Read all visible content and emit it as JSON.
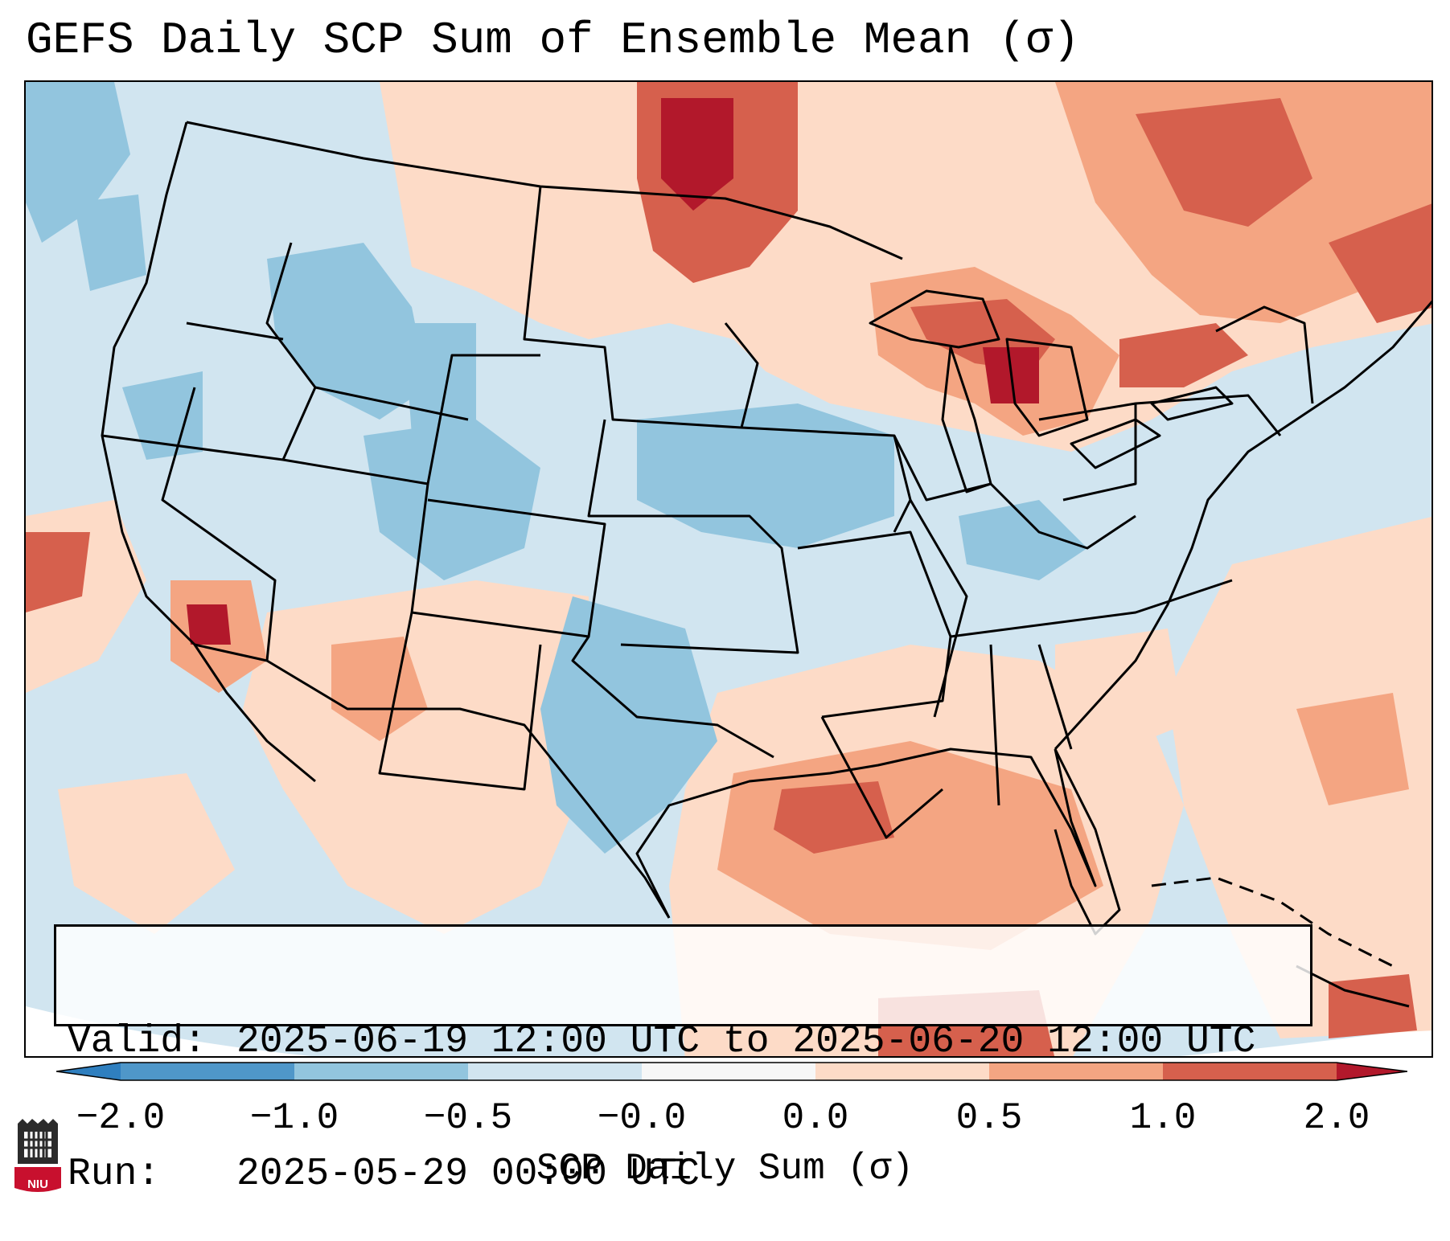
{
  "title": "GEFS Daily SCP Sum of Ensemble Mean (σ)",
  "info": {
    "valid_label": "Valid:",
    "valid_value": "2025-06-19 12:00 UTC to 2025-06-20 12:00 UTC",
    "run_label": "Run:",
    "run_value": "2025-05-29 00:00 UTC"
  },
  "colorbar": {
    "title": "SCP Daily Sum (σ)",
    "ticks": [
      "−2.0",
      "−1.0",
      "−0.5",
      "−0.0",
      "0.0",
      "0.5",
      "1.0",
      "2.0"
    ],
    "bins": [
      {
        "range": "< -2.0",
        "color": "#2f7fbf"
      },
      {
        "range": "-2.0 to -1.0",
        "color": "#4f97c9"
      },
      {
        "range": "-1.0 to -0.5",
        "color": "#92c5de"
      },
      {
        "range": "-0.5 to 0.0",
        "color": "#d1e5f0"
      },
      {
        "range": "0.0",
        "color": "#f7f7f7"
      },
      {
        "range": "0.0 to 0.5",
        "color": "#fddbc7"
      },
      {
        "range": "0.5 to 1.0",
        "color": "#f4a582"
      },
      {
        "range": "1.0 to 2.0",
        "color": "#d6604d"
      },
      {
        "range": "> 2.0",
        "color": "#b2182b"
      }
    ]
  },
  "map": {
    "projection": "Lambert conformal, CONUS",
    "field_regions": [
      {
        "region": "Canadian Prairies",
        "level": "1.0 to 2.0"
      },
      {
        "region": "Great Lakes",
        "level": "1.0 to 2.0"
      },
      {
        "region": "Southern California coast",
        "level": "> 2.0"
      },
      {
        "region": "Gulf of Mexico",
        "level": "0.5 to 1.0"
      },
      {
        "region": "Western Atlantic",
        "level": "0.0 to 0.5"
      },
      {
        "region": "Central Plains",
        "level": "-1.0 to -0.5"
      },
      {
        "region": "West Texas",
        "level": "-1.0 to -0.5"
      },
      {
        "region": "Idaho / Wyoming",
        "level": "-1.0 to -0.5"
      },
      {
        "region": "Eastern Pacific",
        "level": "-0.5 to 0.0"
      }
    ]
  },
  "logo": {
    "text": "NIU"
  }
}
